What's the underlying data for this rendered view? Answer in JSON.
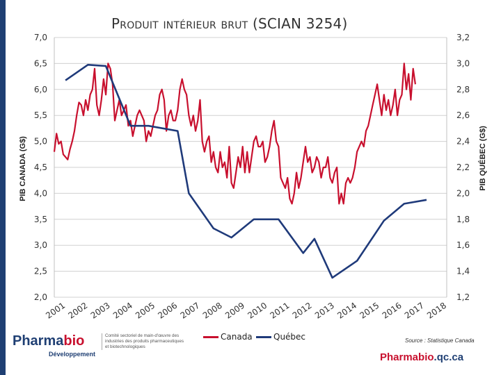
{
  "page": {
    "title": "Produit intérieur brut (SCIAN 3254)",
    "source": "Source : Statistique Canada",
    "url_part1": "Pharmabio",
    "url_part2": ".qc.ca",
    "logo": {
      "brand_part1": "Pharma",
      "brand_part2": "bio",
      "subtitle": "Développement",
      "description": "Comité sectoriel de main-d'œuvre des industries des produits pharmaceutiques et biotechnologiques"
    }
  },
  "chart_data": {
    "type": "line",
    "title": "Produit intérieur brut (SCIAN 3254)",
    "ylabel_left": "PIB CANADA (G$)",
    "ylabel_right": "PIB QUÉBEC (G$)",
    "ylim_left": [
      2.0,
      7.0
    ],
    "ylim_right": [
      1.2,
      3.2
    ],
    "yticks_left": [
      "2,0",
      "2,5",
      "3,0",
      "3,5",
      "4,0",
      "4,5",
      "5,0",
      "5,5",
      "6,0",
      "6,5",
      "7,0"
    ],
    "yticks_right": [
      "1,2",
      "1,4",
      "1,6",
      "1,8",
      "2,0",
      "2,2",
      "2,4",
      "2,6",
      "2,8",
      "3,0",
      "3,2"
    ],
    "xlim": [
      2001,
      2018.5
    ],
    "xticks": [
      "2001",
      "2002",
      "2003",
      "2004",
      "2005",
      "2006",
      "2007",
      "2008",
      "2009",
      "2010",
      "2011",
      "2012",
      "2013",
      "2014",
      "2015",
      "2016",
      "2017",
      "2018"
    ],
    "grid": true,
    "legend_position": "bottom",
    "series": [
      {
        "name": "Canada",
        "axis": "left",
        "color": "#c8102e",
        "x": [
          2001.0,
          2001.1,
          2001.2,
          2001.3,
          2001.4,
          2001.5,
          2001.6,
          2001.7,
          2001.8,
          2001.9,
          2002.0,
          2002.1,
          2002.2,
          2002.3,
          2002.4,
          2002.5,
          2002.6,
          2002.7,
          2002.8,
          2002.9,
          2003.0,
          2003.1,
          2003.2,
          2003.3,
          2003.4,
          2003.5,
          2003.6,
          2003.7,
          2003.8,
          2003.9,
          2004.0,
          2004.1,
          2004.2,
          2004.3,
          2004.4,
          2004.5,
          2004.6,
          2004.7,
          2004.8,
          2004.9,
          2005.0,
          2005.1,
          2005.2,
          2005.3,
          2005.4,
          2005.5,
          2005.6,
          2005.7,
          2005.8,
          2005.9,
          2006.0,
          2006.1,
          2006.2,
          2006.3,
          2006.4,
          2006.5,
          2006.6,
          2006.7,
          2006.8,
          2006.9,
          2007.0,
          2007.1,
          2007.2,
          2007.3,
          2007.4,
          2007.5,
          2007.6,
          2007.7,
          2007.8,
          2007.9,
          2008.0,
          2008.1,
          2008.2,
          2008.3,
          2008.4,
          2008.5,
          2008.6,
          2008.7,
          2008.8,
          2008.9,
          2009.0,
          2009.1,
          2009.2,
          2009.3,
          2009.4,
          2009.5,
          2009.6,
          2009.7,
          2009.8,
          2009.9,
          2010.0,
          2010.1,
          2010.2,
          2010.3,
          2010.4,
          2010.5,
          2010.6,
          2010.7,
          2010.8,
          2010.9,
          2011.0,
          2011.1,
          2011.2,
          2011.3,
          2011.4,
          2011.5,
          2011.6,
          2011.7,
          2011.8,
          2011.9,
          2012.0,
          2012.1,
          2012.2,
          2012.3,
          2012.4,
          2012.5,
          2012.6,
          2012.7,
          2012.8,
          2012.9,
          2013.0,
          2013.1,
          2013.2,
          2013.3,
          2013.4,
          2013.5,
          2013.6,
          2013.7,
          2013.8,
          2013.9,
          2014.0,
          2014.1,
          2014.2,
          2014.3,
          2014.4,
          2014.5,
          2014.6,
          2014.7,
          2014.8,
          2014.9,
          2015.0,
          2015.1,
          2015.2,
          2015.3,
          2015.4,
          2015.5,
          2015.6,
          2015.7,
          2015.8,
          2015.9,
          2016.0,
          2016.1,
          2016.2,
          2016.3,
          2016.4,
          2016.5,
          2016.6,
          2016.7,
          2016.8,
          2016.9,
          2017.0,
          2017.1
        ],
        "values": [
          4.8,
          5.15,
          4.95,
          5.0,
          4.75,
          4.7,
          4.65,
          4.85,
          5.0,
          5.2,
          5.5,
          5.75,
          5.7,
          5.5,
          5.8,
          5.6,
          5.9,
          6.0,
          6.4,
          5.7,
          5.5,
          5.8,
          6.2,
          5.9,
          6.5,
          6.4,
          6.1,
          5.4,
          5.6,
          5.8,
          5.5,
          5.6,
          5.7,
          5.3,
          5.4,
          5.1,
          5.3,
          5.5,
          5.6,
          5.5,
          5.4,
          5.0,
          5.2,
          5.1,
          5.3,
          5.5,
          5.6,
          5.9,
          6.0,
          5.8,
          5.2,
          5.5,
          5.6,
          5.4,
          5.4,
          5.6,
          6.0,
          6.2,
          6.0,
          5.9,
          5.5,
          5.3,
          5.5,
          5.2,
          5.4,
          5.8,
          5.0,
          4.8,
          5.0,
          5.1,
          4.6,
          4.8,
          4.5,
          4.4,
          4.8,
          4.5,
          4.6,
          4.3,
          4.9,
          4.2,
          4.1,
          4.4,
          4.7,
          4.5,
          4.9,
          4.4,
          4.8,
          4.4,
          4.7,
          5.0,
          5.1,
          4.9,
          4.9,
          5.0,
          4.6,
          4.7,
          4.9,
          5.2,
          5.4,
          5.0,
          4.9,
          4.3,
          4.2,
          4.1,
          4.3,
          3.9,
          3.8,
          4.0,
          4.4,
          4.1,
          4.3,
          4.6,
          4.9,
          4.6,
          4.7,
          4.4,
          4.5,
          4.7,
          4.6,
          4.3,
          4.5,
          4.5,
          4.7,
          4.3,
          4.2,
          4.4,
          4.5,
          3.8,
          4.0,
          3.8,
          4.2,
          4.3,
          4.2,
          4.3,
          4.5,
          4.8,
          4.9,
          5.0,
          4.9,
          5.2,
          5.3,
          5.5,
          5.7,
          5.9,
          6.1,
          5.8,
          5.5,
          5.9,
          5.6,
          5.8,
          5.5,
          5.7,
          6.0,
          5.5,
          5.8,
          5.9,
          6.5,
          6.0,
          6.3,
          5.8,
          6.4,
          6.1
        ]
      },
      {
        "name": "Québec",
        "axis": "right",
        "color": "#1f3a7a",
        "x": [
          2001.5,
          2002.5,
          2003.3,
          2004.4,
          2005.2,
          2006.5,
          2007.0,
          2008.1,
          2008.9,
          2009.9,
          2011.0,
          2012.1,
          2012.6,
          2013.4,
          2014.5,
          2015.7,
          2016.6,
          2017.6
        ],
        "values": [
          2.87,
          2.99,
          2.98,
          2.52,
          2.52,
          2.48,
          2.0,
          1.73,
          1.66,
          1.8,
          1.8,
          1.54,
          1.65,
          1.35,
          1.48,
          1.79,
          1.92,
          1.95
        ]
      }
    ]
  }
}
